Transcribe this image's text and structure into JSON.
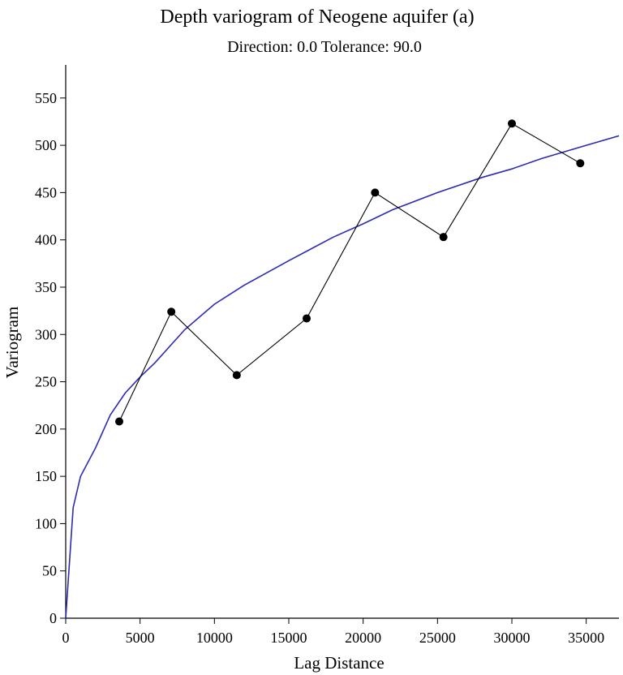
{
  "chart_data": {
    "type": "line",
    "title": "Depth variogram of Neogene aquifer (a)",
    "subtitle": "Direction: 0.0 Tolerance: 90.0",
    "xlabel": "Lag Distance",
    "ylabel": "Variogram",
    "xlim": [
      0,
      37200
    ],
    "ylim": [
      0,
      585
    ],
    "x_ticks": [
      0,
      5000,
      10000,
      15000,
      20000,
      25000,
      30000,
      35000
    ],
    "y_ticks": [
      0,
      50,
      100,
      150,
      200,
      250,
      300,
      350,
      400,
      450,
      500,
      550
    ],
    "grid": false,
    "series": [
      {
        "type": "line+markers",
        "x": [
          3600,
          7100,
          11500,
          16200,
          20800,
          25400,
          30000,
          34600
        ],
        "values": [
          208,
          324,
          257,
          317,
          450,
          403,
          523,
          481
        ],
        "color": "#000000"
      },
      {
        "type": "fitted-curve",
        "model": "power",
        "nugget": 0,
        "x": [
          0,
          500,
          1000,
          2000,
          3000,
          4000,
          5000,
          6000,
          8000,
          10000,
          12000,
          15000,
          18000,
          20000,
          22000,
          25000,
          28000,
          30000,
          32000,
          35000,
          37200
        ],
        "values": [
          0,
          117,
          150,
          180,
          215,
          238,
          255,
          270,
          305,
          332,
          352,
          378,
          403,
          417,
          432,
          450,
          466,
          475,
          486,
          500,
          510
        ],
        "color": "#2b2bb3"
      }
    ]
  }
}
